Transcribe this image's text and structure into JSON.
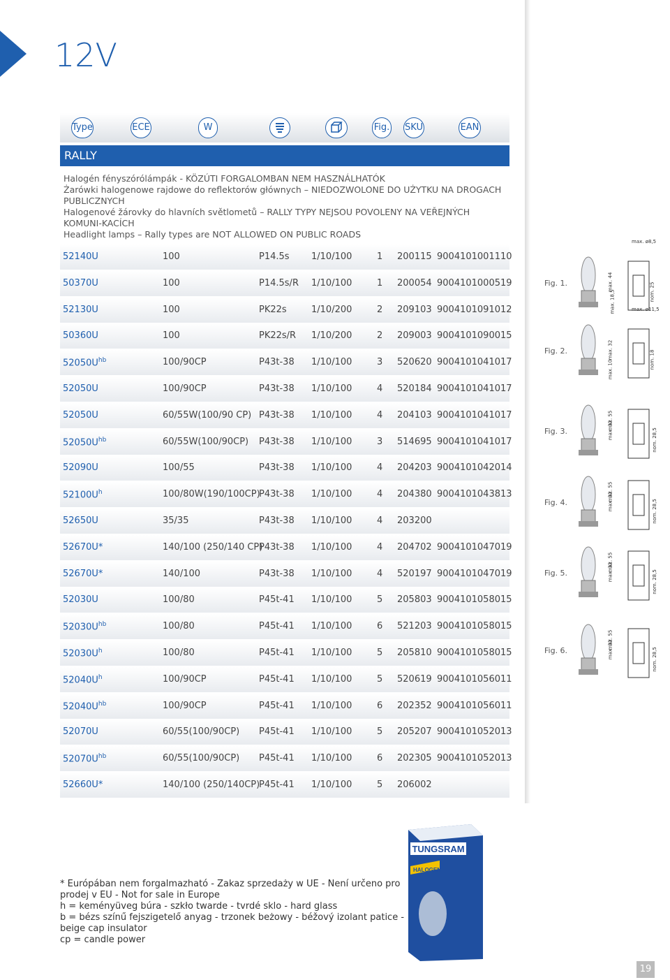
{
  "title": "12V",
  "header": {
    "columns": [
      "Type",
      "ECE",
      "W",
      null,
      null,
      "Fig.",
      "SKU",
      "EAN"
    ]
  },
  "section": "RALLY",
  "description": [
    "Halogén fényszórólámpák - KÖZÚTI FORGALOMBAN NEM HASZNÁLHATÓK",
    "Żarówki halogenowe rajdowe do reflektorów głównych – NIEDOZWOLONE DO UŻYTKU NA DROGACH PUBLICZNYCH",
    "Halogenové žárovky do hlavních světlometů – RALLY TYPY NEJSOU POVOLENY NA VEŘEJNÝCH KOMUNI-KACÍCH",
    "Headlight lamps – Rally types are NOT ALLOWED ON PUBLIC ROADS"
  ],
  "table": {
    "rows": [
      {
        "type": "52140U",
        "w": "100",
        "base": "P14.5s",
        "pack": "1/10/100",
        "fig": "1",
        "sku": "200115",
        "ean": "9004101001110"
      },
      {
        "type": "50370U",
        "w": "100",
        "base": "P14.5s/R",
        "pack": "1/10/100",
        "fig": "1",
        "sku": "200054",
        "ean": "9004101000519"
      },
      {
        "type": "52130U",
        "w": "100",
        "base": "PK22s",
        "pack": "1/10/200",
        "fig": "2",
        "sku": "209103",
        "ean": "9004101091012"
      },
      {
        "type": "50360U",
        "w": "100",
        "base": "PK22s/R",
        "pack": "1/10/200",
        "fig": "2",
        "sku": "209003",
        "ean": "9004101090015"
      },
      {
        "type": "52050U",
        "sup": "hb",
        "w": "100/90CP",
        "base": "P43t-38",
        "pack": "1/10/100",
        "fig": "3",
        "sku": "520620",
        "ean": "9004101041017"
      },
      {
        "type": "52050U",
        "w": "100/90CP",
        "base": "P43t-38",
        "pack": "1/10/100",
        "fig": "4",
        "sku": "520184",
        "ean": "9004101041017"
      },
      {
        "type": "52050U",
        "w": "60/55W(100/90 CP)",
        "base": "P43t-38",
        "pack": "1/10/100",
        "fig": "4",
        "sku": "204103",
        "ean": "9004101041017"
      },
      {
        "type": "52050U",
        "sup": "hb",
        "w": "60/55W(100/90CP)",
        "base": "P43t-38",
        "pack": "1/10/100",
        "fig": "3",
        "sku": "514695",
        "ean": "9004101041017"
      },
      {
        "type": "52090U",
        "w": "100/55",
        "base": "P43t-38",
        "pack": "1/10/100",
        "fig": "4",
        "sku": "204203",
        "ean": "9004101042014"
      },
      {
        "type": "52100U",
        "sup": "h",
        "w": "100/80W(190/100CP)",
        "base": "P43t-38",
        "pack": "1/10/100",
        "fig": "4",
        "sku": "204380",
        "ean": "9004101043813"
      },
      {
        "type": "52650U",
        "w": "35/35",
        "base": "P43t-38",
        "pack": "1/10/100",
        "fig": "4",
        "sku": "203200"
      },
      {
        "type": "52670U*",
        "w": "140/100 (250/140 CP)",
        "base": "P43t-38",
        "pack": "1/10/100",
        "fig": "4",
        "sku": "204702",
        "ean": "9004101047019"
      },
      {
        "type": "52670U*",
        "w": "140/100",
        "base": "P43t-38",
        "pack": "1/10/100",
        "fig": "4",
        "sku": "520197",
        "ean": "9004101047019"
      },
      {
        "type": "52030U",
        "w": "100/80",
        "base": "P45t-41",
        "pack": "1/10/100",
        "fig": "5",
        "sku": "205803",
        "ean": "9004101058015"
      },
      {
        "type": "52030U",
        "sup": "hb",
        "w": "100/80",
        "base": "P45t-41",
        "pack": "1/10/100",
        "fig": "6",
        "sku": "521203",
        "ean": "9004101058015"
      },
      {
        "type": "52030U",
        "sup": "h",
        "w": "100/80",
        "base": "P45t-41",
        "pack": "1/10/100",
        "fig": "5",
        "sku": "205810",
        "ean": "9004101058015"
      },
      {
        "type": "52040U",
        "sup": "h",
        "w": "100/90CP",
        "base": "P45t-41",
        "pack": "1/10/100",
        "fig": "5",
        "sku": "520619",
        "ean": "9004101056011"
      },
      {
        "type": "52040U",
        "sup": "hb",
        "w": "100/90CP",
        "base": "P45t-41",
        "pack": "1/10/100",
        "fig": "6",
        "sku": "202352",
        "ean": "9004101056011"
      },
      {
        "type": "52070U",
        "w": "60/55(100/90CP)",
        "base": "P45t-41",
        "pack": "1/10/100",
        "fig": "5",
        "sku": "205207",
        "ean": "9004101052013"
      },
      {
        "type": "52070U",
        "sup": "hb",
        "w": "60/55(100/90CP)",
        "base": "P45t-41",
        "pack": "1/10/100",
        "fig": "6",
        "sku": "202305",
        "ean": "9004101052013"
      },
      {
        "type": "52660U*",
        "w": "140/100 (250/140CP)",
        "base": "P45t-41",
        "pack": "1/10/100",
        "fig": "5",
        "sku": "206002"
      }
    ]
  },
  "figures": [
    {
      "label": "Fig. 1.",
      "dims": [
        "max. ø8,5",
        "max. 44",
        "nom. 25",
        "max. 18,5"
      ]
    },
    {
      "label": "Fig. 2.",
      "dims": [
        "max. ø11,5",
        "max. 32",
        "nom. 18",
        "max. 10"
      ]
    },
    {
      "label": "Fig. 3.",
      "dims": [
        "max. 55",
        "max. 32",
        "nom. 28,5"
      ]
    },
    {
      "label": "Fig. 4.",
      "dims": [
        "max. 55",
        "max. 32",
        "nom. 28,5"
      ]
    },
    {
      "label": "Fig. 5.",
      "dims": [
        "max. 55",
        "max. 32",
        "nom. 28,5"
      ]
    },
    {
      "label": "Fig. 6.",
      "dims": [
        "max. 55",
        "max. 32",
        "nom. 28,5"
      ]
    }
  ],
  "product": {
    "brand": "TUNGSRAM",
    "line": "HALOGEN"
  },
  "footnotes": [
    "* Európában nem forgalmazható - Zakaz sprzedaży  w UE - Není určeno pro",
    "prodej v EU - Not for sale in Europe",
    "h  =  keményüveg búra - szkło twarde - tvrdé sklo -  hard glass",
    "b  =  bézs színű fejszigetelő anyag - trzonek beżowy - béžový izolant patice -",
    "beige cap insulator",
    "cp = candle power"
  ],
  "page_number": "19"
}
